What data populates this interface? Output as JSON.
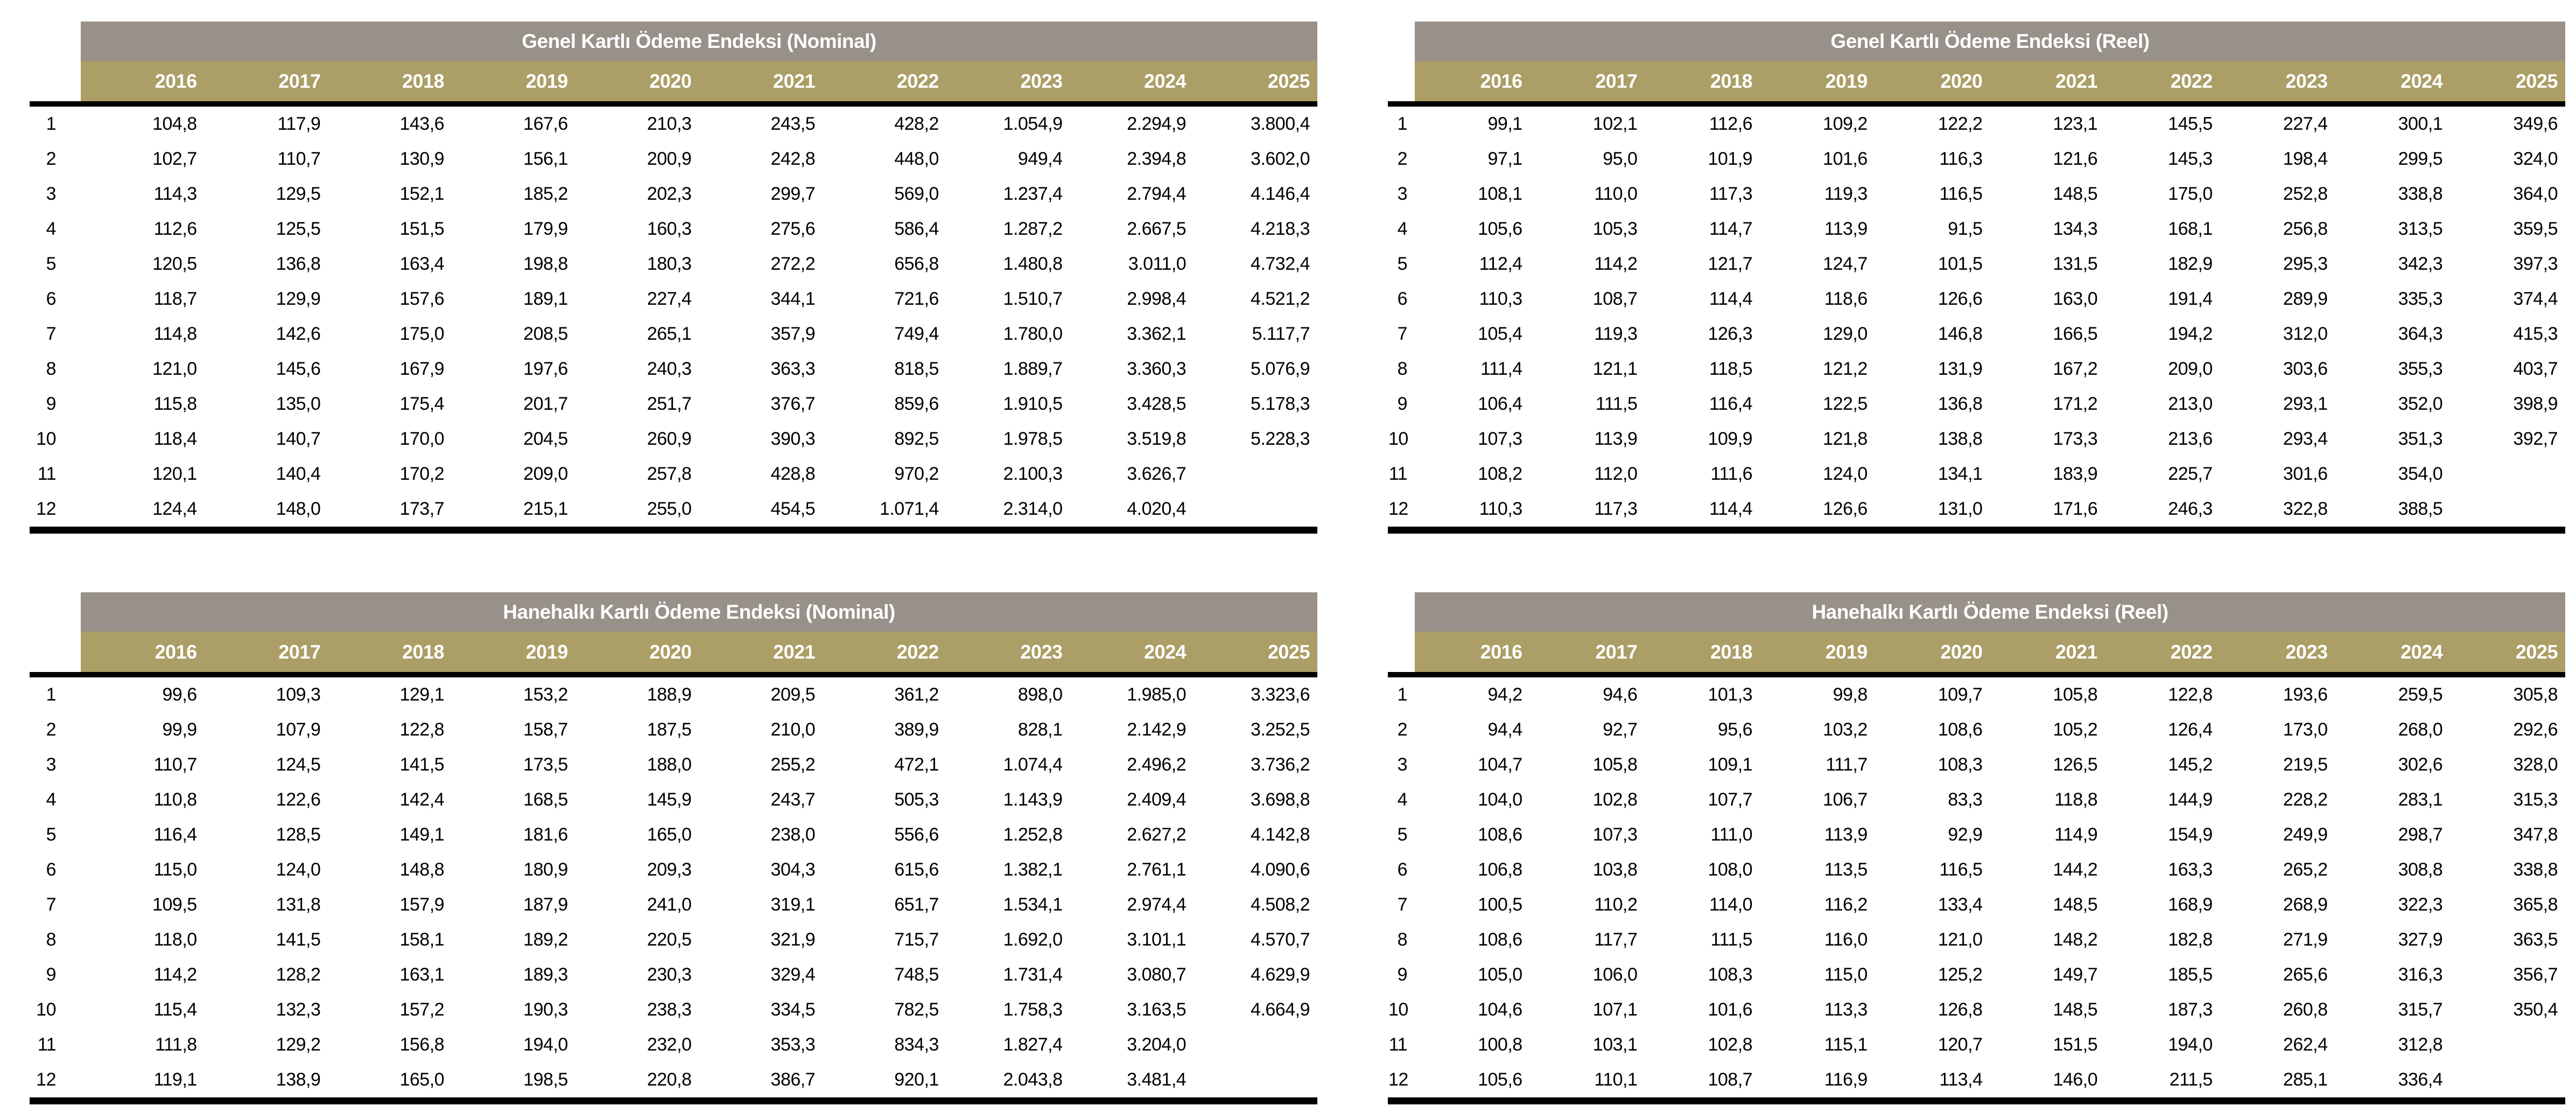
{
  "colors": {
    "title_band": "#98918a",
    "year_band": "#ab9e66",
    "header_text": "#ffffff",
    "data_text": "#000000",
    "rule": "#000000",
    "background": "#ffffff"
  },
  "tables": [
    {
      "title": "Genel Kartlı Ödeme Endeksi (Nominal)",
      "years": [
        "2016",
        "2017",
        "2018",
        "2019",
        "2020",
        "2021",
        "2022",
        "2023",
        "2024",
        "2025"
      ],
      "rows": [
        {
          "month": "1",
          "values": [
            "104,8",
            "117,9",
            "143,6",
            "167,6",
            "210,3",
            "243,5",
            "428,2",
            "1.054,9",
            "2.294,9",
            "3.800,4"
          ]
        },
        {
          "month": "2",
          "values": [
            "102,7",
            "110,7",
            "130,9",
            "156,1",
            "200,9",
            "242,8",
            "448,0",
            "949,4",
            "2.394,8",
            "3.602,0"
          ]
        },
        {
          "month": "3",
          "values": [
            "114,3",
            "129,5",
            "152,1",
            "185,2",
            "202,3",
            "299,7",
            "569,0",
            "1.237,4",
            "2.794,4",
            "4.146,4"
          ]
        },
        {
          "month": "4",
          "values": [
            "112,6",
            "125,5",
            "151,5",
            "179,9",
            "160,3",
            "275,6",
            "586,4",
            "1.287,2",
            "2.667,5",
            "4.218,3"
          ]
        },
        {
          "month": "5",
          "values": [
            "120,5",
            "136,8",
            "163,4",
            "198,8",
            "180,3",
            "272,2",
            "656,8",
            "1.480,8",
            "3.011,0",
            "4.732,4"
          ]
        },
        {
          "month": "6",
          "values": [
            "118,7",
            "129,9",
            "157,6",
            "189,1",
            "227,4",
            "344,1",
            "721,6",
            "1.510,7",
            "2.998,4",
            "4.521,2"
          ]
        },
        {
          "month": "7",
          "values": [
            "114,8",
            "142,6",
            "175,0",
            "208,5",
            "265,1",
            "357,9",
            "749,4",
            "1.780,0",
            "3.362,1",
            "5.117,7"
          ]
        },
        {
          "month": "8",
          "values": [
            "121,0",
            "145,6",
            "167,9",
            "197,6",
            "240,3",
            "363,3",
            "818,5",
            "1.889,7",
            "3.360,3",
            "5.076,9"
          ]
        },
        {
          "month": "9",
          "values": [
            "115,8",
            "135,0",
            "175,4",
            "201,7",
            "251,7",
            "376,7",
            "859,6",
            "1.910,5",
            "3.428,5",
            "5.178,3"
          ]
        },
        {
          "month": "10",
          "values": [
            "118,4",
            "140,7",
            "170,0",
            "204,5",
            "260,9",
            "390,3",
            "892,5",
            "1.978,5",
            "3.519,8",
            "5.228,3"
          ]
        },
        {
          "month": "11",
          "values": [
            "120,1",
            "140,4",
            "170,2",
            "209,0",
            "257,8",
            "428,8",
            "970,2",
            "2.100,3",
            "3.626,7",
            ""
          ]
        },
        {
          "month": "12",
          "values": [
            "124,4",
            "148,0",
            "173,7",
            "215,1",
            "255,0",
            "454,5",
            "1.071,4",
            "2.314,0",
            "4.020,4",
            ""
          ]
        }
      ]
    },
    {
      "title": "Genel Kartlı Ödeme Endeksi (Reel)",
      "years": [
        "2016",
        "2017",
        "2018",
        "2019",
        "2020",
        "2021",
        "2022",
        "2023",
        "2024",
        "2025"
      ],
      "rows": [
        {
          "month": "1",
          "values": [
            "99,1",
            "102,1",
            "112,6",
            "109,2",
            "122,2",
            "123,1",
            "145,5",
            "227,4",
            "300,1",
            "349,6"
          ]
        },
        {
          "month": "2",
          "values": [
            "97,1",
            "95,0",
            "101,9",
            "101,6",
            "116,3",
            "121,6",
            "145,3",
            "198,4",
            "299,5",
            "324,0"
          ]
        },
        {
          "month": "3",
          "values": [
            "108,1",
            "110,0",
            "117,3",
            "119,3",
            "116,5",
            "148,5",
            "175,0",
            "252,8",
            "338,8",
            "364,0"
          ]
        },
        {
          "month": "4",
          "values": [
            "105,6",
            "105,3",
            "114,7",
            "113,9",
            "91,5",
            "134,3",
            "168,1",
            "256,8",
            "313,5",
            "359,5"
          ]
        },
        {
          "month": "5",
          "values": [
            "112,4",
            "114,2",
            "121,7",
            "124,7",
            "101,5",
            "131,5",
            "182,9",
            "295,3",
            "342,3",
            "397,3"
          ]
        },
        {
          "month": "6",
          "values": [
            "110,3",
            "108,7",
            "114,4",
            "118,6",
            "126,6",
            "163,0",
            "191,4",
            "289,9",
            "335,3",
            "374,4"
          ]
        },
        {
          "month": "7",
          "values": [
            "105,4",
            "119,3",
            "126,3",
            "129,0",
            "146,8",
            "166,5",
            "194,2",
            "312,0",
            "364,3",
            "415,3"
          ]
        },
        {
          "month": "8",
          "values": [
            "111,4",
            "121,1",
            "118,5",
            "121,2",
            "131,9",
            "167,2",
            "209,0",
            "303,6",
            "355,3",
            "403,7"
          ]
        },
        {
          "month": "9",
          "values": [
            "106,4",
            "111,5",
            "116,4",
            "122,5",
            "136,8",
            "171,2",
            "213,0",
            "293,1",
            "352,0",
            "398,9"
          ]
        },
        {
          "month": "10",
          "values": [
            "107,3",
            "113,9",
            "109,9",
            "121,8",
            "138,8",
            "173,3",
            "213,6",
            "293,4",
            "351,3",
            "392,7"
          ]
        },
        {
          "month": "11",
          "values": [
            "108,2",
            "112,0",
            "111,6",
            "124,0",
            "134,1",
            "183,9",
            "225,7",
            "301,6",
            "354,0",
            ""
          ]
        },
        {
          "month": "12",
          "values": [
            "110,3",
            "117,3",
            "114,4",
            "126,6",
            "131,0",
            "171,6",
            "246,3",
            "322,8",
            "388,5",
            ""
          ]
        }
      ]
    },
    {
      "title": "Hanehalkı Kartlı Ödeme Endeksi (Nominal)",
      "years": [
        "2016",
        "2017",
        "2018",
        "2019",
        "2020",
        "2021",
        "2022",
        "2023",
        "2024",
        "2025"
      ],
      "rows": [
        {
          "month": "1",
          "values": [
            "99,6",
            "109,3",
            "129,1",
            "153,2",
            "188,9",
            "209,5",
            "361,2",
            "898,0",
            "1.985,0",
            "3.323,6"
          ]
        },
        {
          "month": "2",
          "values": [
            "99,9",
            "107,9",
            "122,8",
            "158,7",
            "187,5",
            "210,0",
            "389,9",
            "828,1",
            "2.142,9",
            "3.252,5"
          ]
        },
        {
          "month": "3",
          "values": [
            "110,7",
            "124,5",
            "141,5",
            "173,5",
            "188,0",
            "255,2",
            "472,1",
            "1.074,4",
            "2.496,2",
            "3.736,2"
          ]
        },
        {
          "month": "4",
          "values": [
            "110,8",
            "122,6",
            "142,4",
            "168,5",
            "145,9",
            "243,7",
            "505,3",
            "1.143,9",
            "2.409,4",
            "3.698,8"
          ]
        },
        {
          "month": "5",
          "values": [
            "116,4",
            "128,5",
            "149,1",
            "181,6",
            "165,0",
            "238,0",
            "556,6",
            "1.252,8",
            "2.627,2",
            "4.142,8"
          ]
        },
        {
          "month": "6",
          "values": [
            "115,0",
            "124,0",
            "148,8",
            "180,9",
            "209,3",
            "304,3",
            "615,6",
            "1.382,1",
            "2.761,1",
            "4.090,6"
          ]
        },
        {
          "month": "7",
          "values": [
            "109,5",
            "131,8",
            "157,9",
            "187,9",
            "241,0",
            "319,1",
            "651,7",
            "1.534,1",
            "2.974,4",
            "4.508,2"
          ]
        },
        {
          "month": "8",
          "values": [
            "118,0",
            "141,5",
            "158,1",
            "189,2",
            "220,5",
            "321,9",
            "715,7",
            "1.692,0",
            "3.101,1",
            "4.570,7"
          ]
        },
        {
          "month": "9",
          "values": [
            "114,2",
            "128,2",
            "163,1",
            "189,3",
            "230,3",
            "329,4",
            "748,5",
            "1.731,4",
            "3.080,7",
            "4.629,9"
          ]
        },
        {
          "month": "10",
          "values": [
            "115,4",
            "132,3",
            "157,2",
            "190,3",
            "238,3",
            "334,5",
            "782,5",
            "1.758,3",
            "3.163,5",
            "4.664,9"
          ]
        },
        {
          "month": "11",
          "values": [
            "111,8",
            "129,2",
            "156,8",
            "194,0",
            "232,0",
            "353,3",
            "834,3",
            "1.827,4",
            "3.204,0",
            ""
          ]
        },
        {
          "month": "12",
          "values": [
            "119,1",
            "138,9",
            "165,0",
            "198,5",
            "220,8",
            "386,7",
            "920,1",
            "2.043,8",
            "3.481,4",
            ""
          ]
        }
      ]
    },
    {
      "title": "Hanehalkı Kartlı Ödeme Endeksi (Reel)",
      "years": [
        "2016",
        "2017",
        "2018",
        "2019",
        "2020",
        "2021",
        "2022",
        "2023",
        "2024",
        "2025"
      ],
      "rows": [
        {
          "month": "1",
          "values": [
            "94,2",
            "94,6",
            "101,3",
            "99,8",
            "109,7",
            "105,8",
            "122,8",
            "193,6",
            "259,5",
            "305,8"
          ]
        },
        {
          "month": "2",
          "values": [
            "94,4",
            "92,7",
            "95,6",
            "103,2",
            "108,6",
            "105,2",
            "126,4",
            "173,0",
            "268,0",
            "292,6"
          ]
        },
        {
          "month": "3",
          "values": [
            "104,7",
            "105,8",
            "109,1",
            "111,7",
            "108,3",
            "126,5",
            "145,2",
            "219,5",
            "302,6",
            "328,0"
          ]
        },
        {
          "month": "4",
          "values": [
            "104,0",
            "102,8",
            "107,7",
            "106,7",
            "83,3",
            "118,8",
            "144,9",
            "228,2",
            "283,1",
            "315,3"
          ]
        },
        {
          "month": "5",
          "values": [
            "108,6",
            "107,3",
            "111,0",
            "113,9",
            "92,9",
            "114,9",
            "154,9",
            "249,9",
            "298,7",
            "347,8"
          ]
        },
        {
          "month": "6",
          "values": [
            "106,8",
            "103,8",
            "108,0",
            "113,5",
            "116,5",
            "144,2",
            "163,3",
            "265,2",
            "308,8",
            "338,8"
          ]
        },
        {
          "month": "7",
          "values": [
            "100,5",
            "110,2",
            "114,0",
            "116,2",
            "133,4",
            "148,5",
            "168,9",
            "268,9",
            "322,3",
            "365,8"
          ]
        },
        {
          "month": "8",
          "values": [
            "108,6",
            "117,7",
            "111,5",
            "116,0",
            "121,0",
            "148,2",
            "182,8",
            "271,9",
            "327,9",
            "363,5"
          ]
        },
        {
          "month": "9",
          "values": [
            "105,0",
            "106,0",
            "108,3",
            "115,0",
            "125,2",
            "149,7",
            "185,5",
            "265,6",
            "316,3",
            "356,7"
          ]
        },
        {
          "month": "10",
          "values": [
            "104,6",
            "107,1",
            "101,6",
            "113,3",
            "126,8",
            "148,5",
            "187,3",
            "260,8",
            "315,7",
            "350,4"
          ]
        },
        {
          "month": "11",
          "values": [
            "100,8",
            "103,1",
            "102,8",
            "115,1",
            "120,7",
            "151,5",
            "194,0",
            "262,4",
            "312,8",
            ""
          ]
        },
        {
          "month": "12",
          "values": [
            "105,6",
            "110,1",
            "108,7",
            "116,9",
            "113,4",
            "146,0",
            "211,5",
            "285,1",
            "336,4",
            ""
          ]
        }
      ]
    }
  ]
}
